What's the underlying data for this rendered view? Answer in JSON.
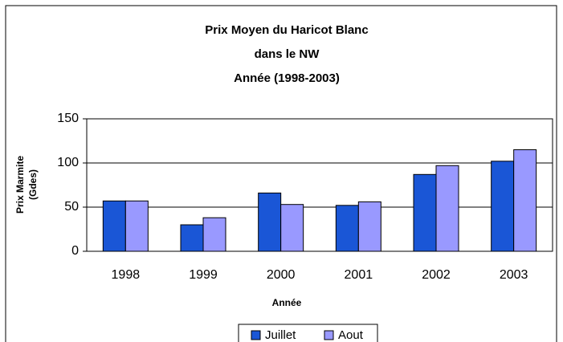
{
  "chart_data": {
    "type": "bar",
    "title": [
      "Prix Moyen du Haricot Blanc",
      "dans le NW",
      "Année (1998-2003)"
    ],
    "x_label": "Année",
    "y_label": [
      "Prix Marmite",
      "(Gdes)"
    ],
    "categories": [
      "1998",
      "1999",
      "2000",
      "2001",
      "2002",
      "2003"
    ],
    "series": [
      {
        "name": "Juillet",
        "color": "#1a56d6",
        "values": [
          57,
          30,
          66,
          52,
          87,
          102
        ]
      },
      {
        "name": "Aout",
        "color": "#9999ff",
        "values": [
          57,
          38,
          53,
          56,
          97,
          115
        ]
      }
    ],
    "ylim": [
      0,
      150
    ],
    "yticks": [
      0,
      50,
      100,
      150
    ],
    "grid": true,
    "legend": "bottom"
  }
}
